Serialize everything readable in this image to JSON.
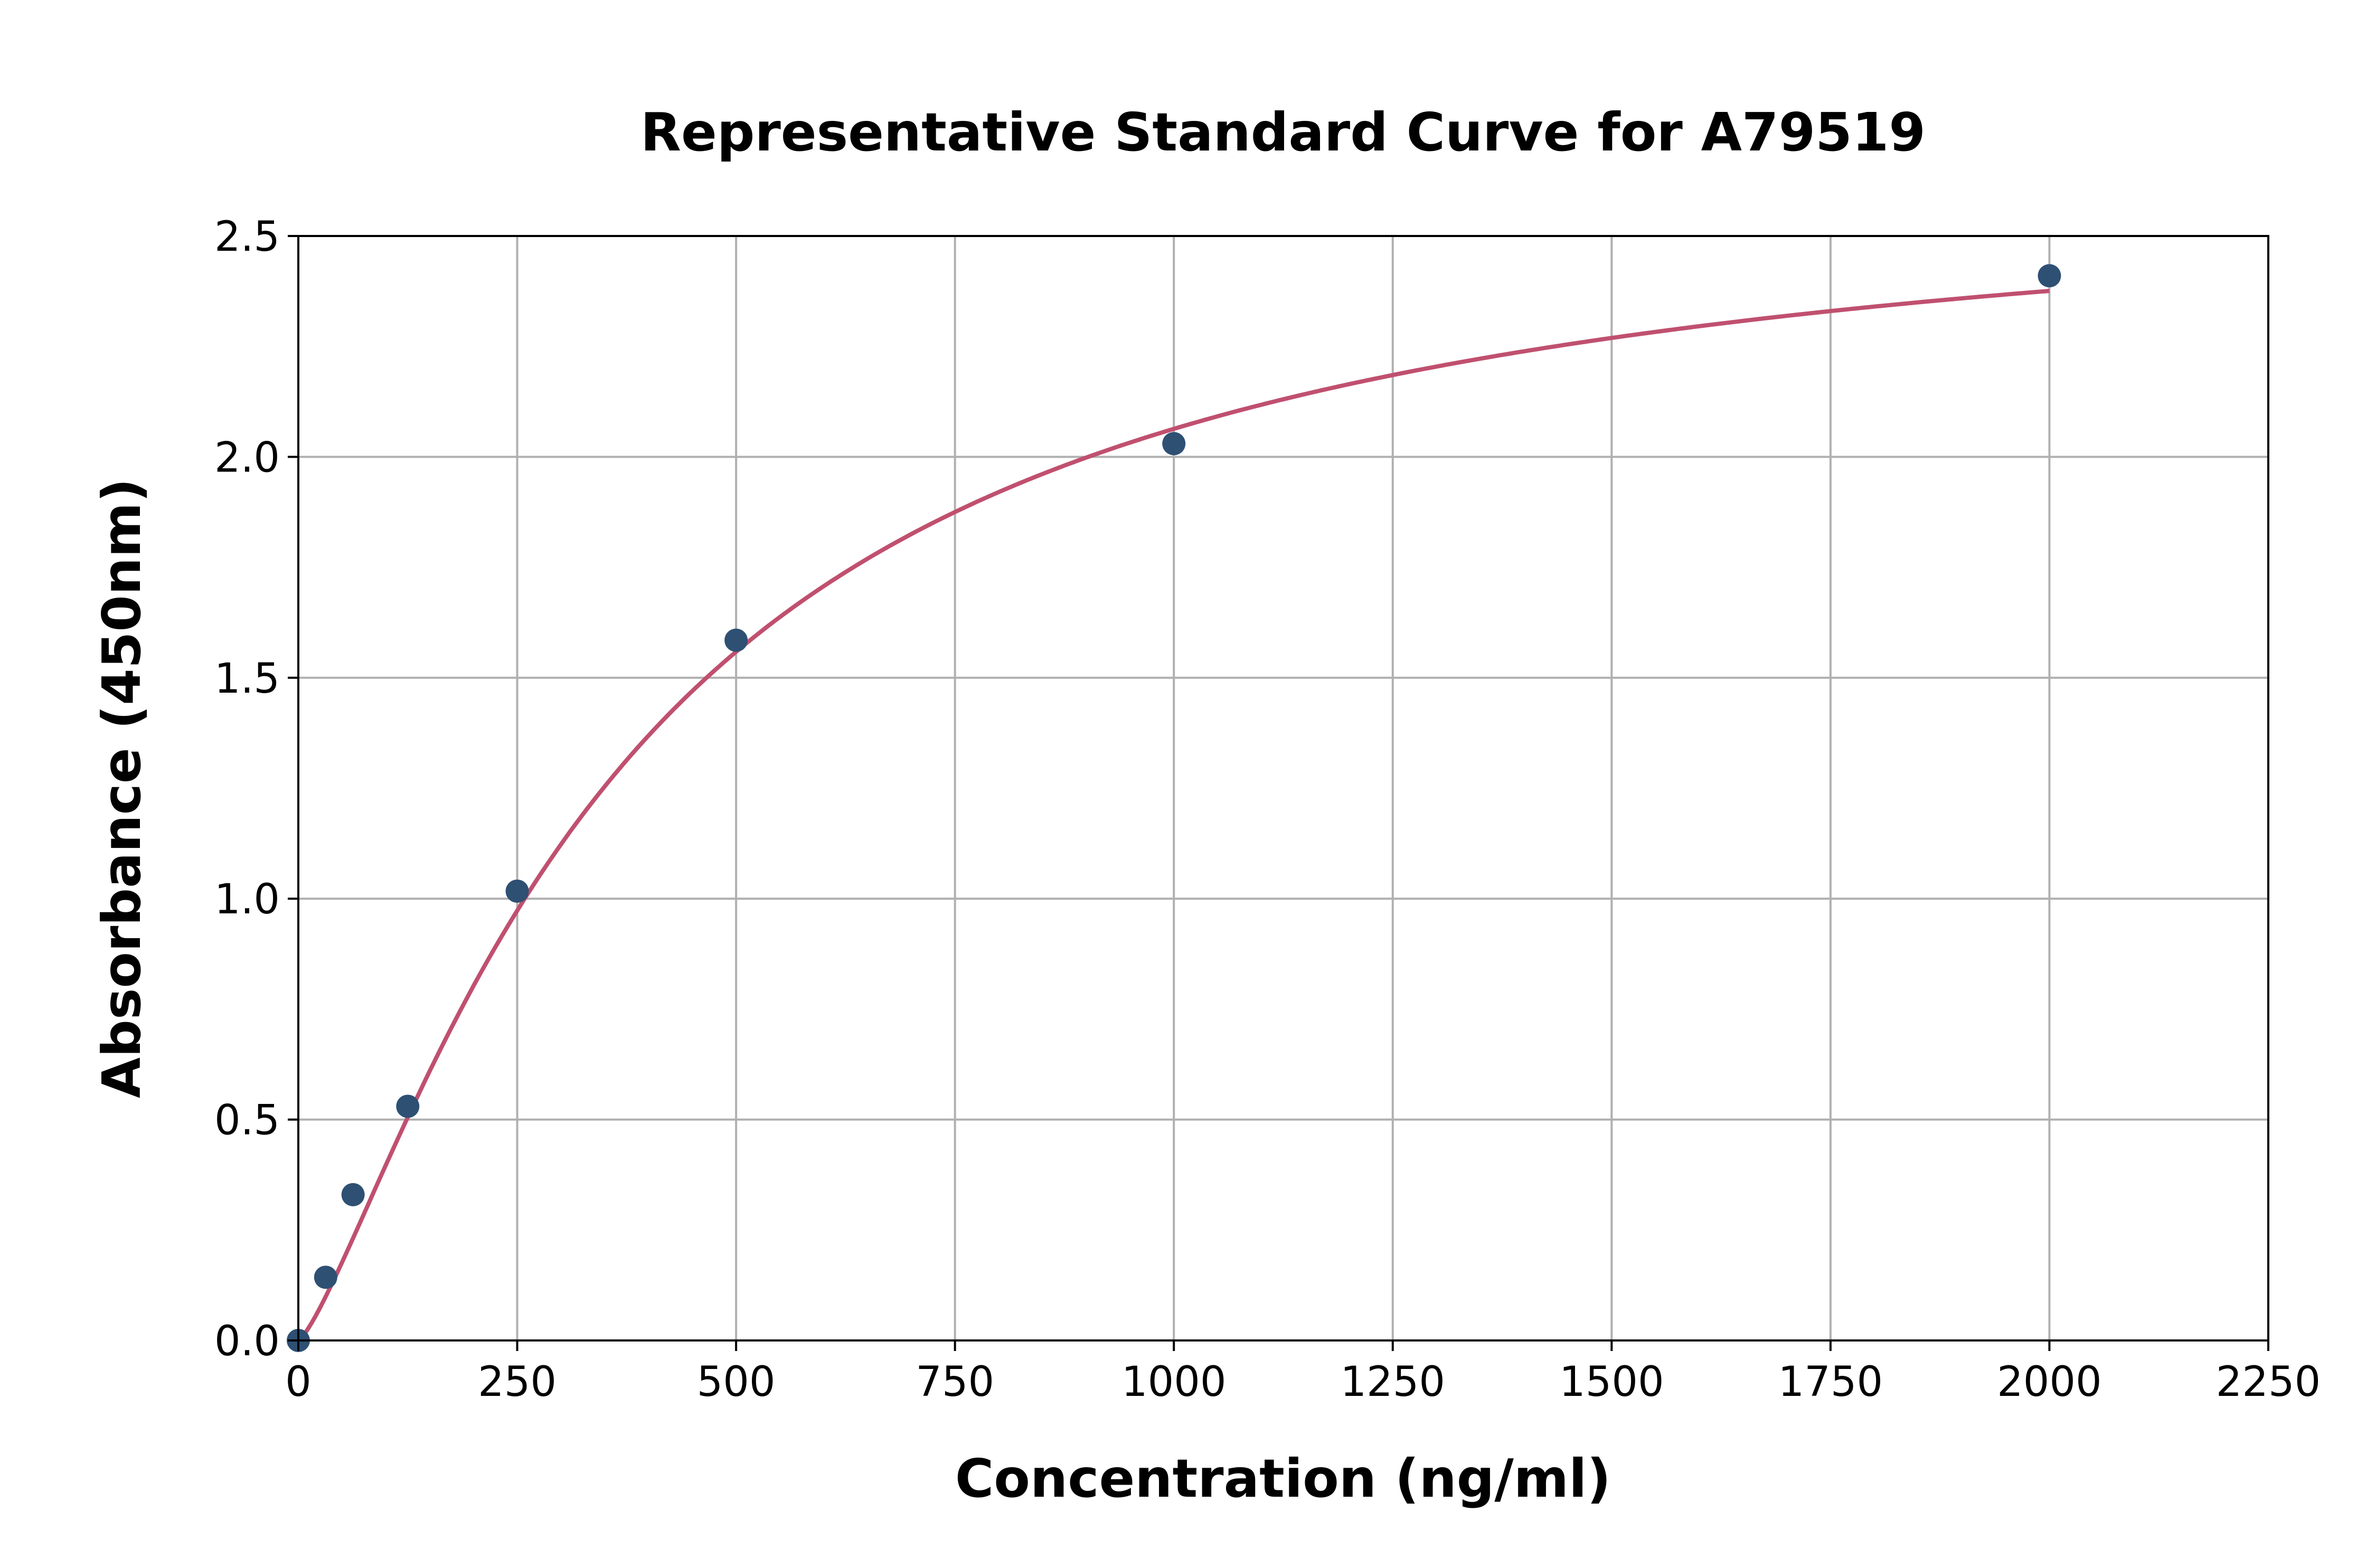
{
  "chart_data": {
    "type": "scatter",
    "title": "Representative Standard Curve for A79519",
    "xlabel": "Concentration (ng/ml)",
    "ylabel": "Absorbance (450nm)",
    "xlim": [
      0,
      2250
    ],
    "ylim": [
      0,
      2.5
    ],
    "xticks": [
      "0",
      "250",
      "500",
      "750",
      "1000",
      "1250",
      "1500",
      "1750",
      "2000",
      "2250"
    ],
    "yticks": [
      "0.0",
      "0.5",
      "1.0",
      "1.5",
      "2.0",
      "2.5"
    ],
    "grid": true,
    "points": {
      "x": [
        0,
        31.25,
        62.5,
        125,
        250,
        500,
        1000,
        2000
      ],
      "y": [
        0.0,
        0.143,
        0.33,
        0.53,
        1.017,
        1.585,
        2.03,
        2.41
      ]
    },
    "fit_curve": "four-parameter logistic",
    "colors": {
      "points": "#2e5073",
      "curve": "#c0506f",
      "grid": "#b0b0b0"
    }
  }
}
